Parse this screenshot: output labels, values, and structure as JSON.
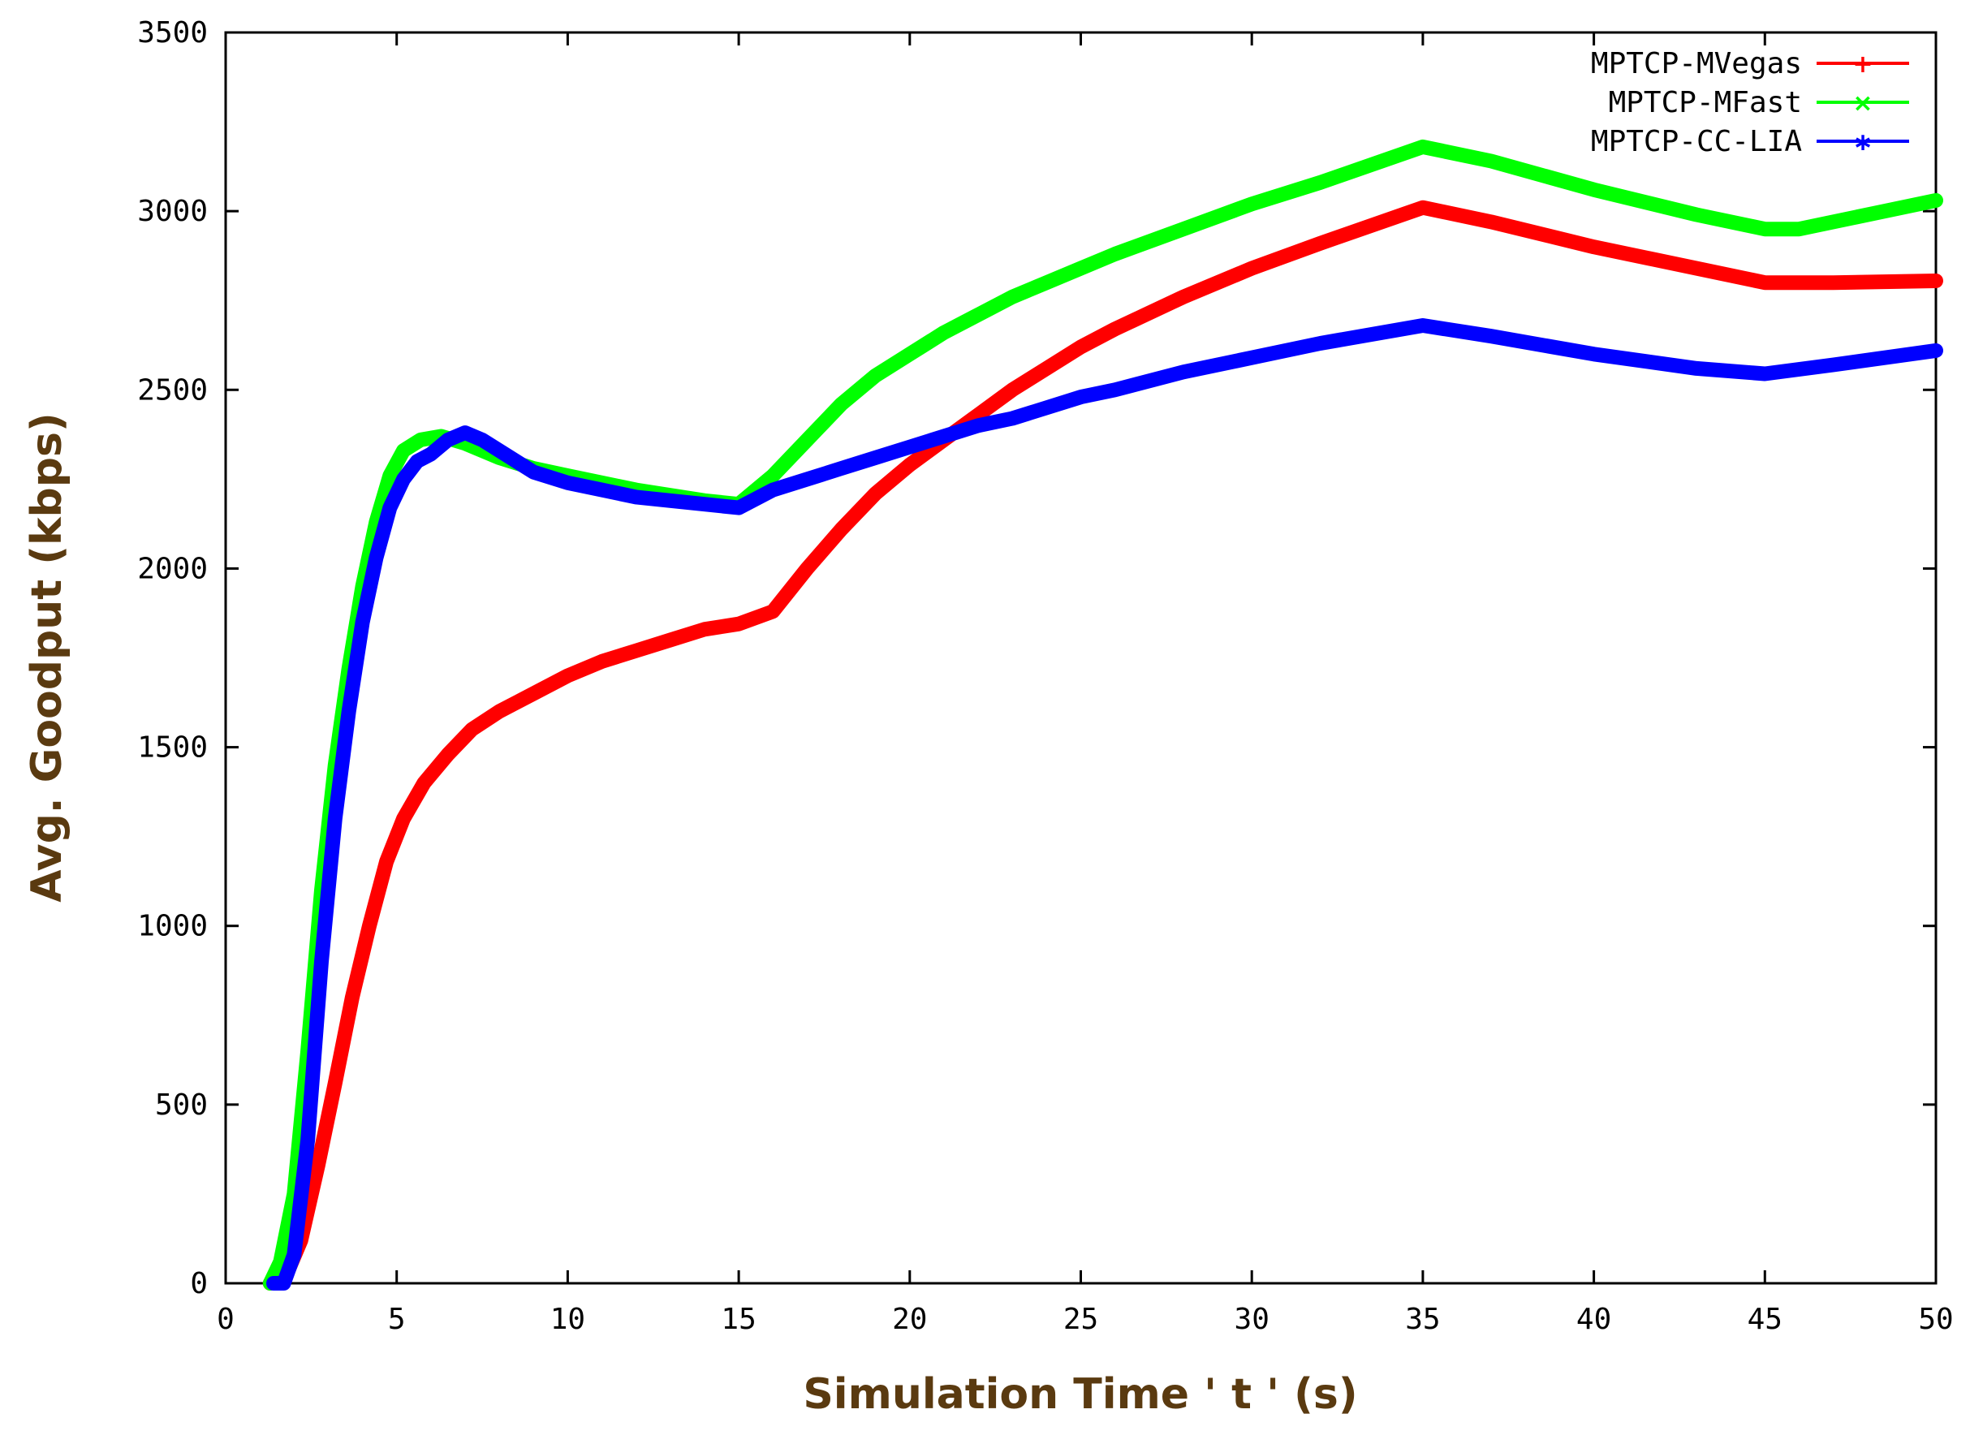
{
  "chart_data": {
    "type": "line",
    "title": "",
    "xlabel": "Simulation Time ' t ' (s)",
    "ylabel": "Avg. Goodput (kbps)",
    "xlim": [
      0,
      50
    ],
    "ylim": [
      0,
      3500
    ],
    "xticks": [
      0,
      5,
      10,
      15,
      20,
      25,
      30,
      35,
      40,
      45,
      50
    ],
    "yticks": [
      0,
      500,
      1000,
      1500,
      2000,
      2500,
      3000,
      3500
    ],
    "grid": false,
    "legend_position": "top-right",
    "axis_title_color": "#5a3a10",
    "series": [
      {
        "name": "MPTCP-MVegas",
        "color": "#ff0000",
        "x": [
          1.3,
          1.8,
          2.2,
          2.7,
          3.2,
          3.7,
          4.2,
          4.7,
          5.2,
          5.8,
          6.5,
          7.2,
          8,
          9,
          10,
          11,
          12,
          13,
          14,
          15,
          16,
          17,
          18,
          19,
          20,
          21,
          22,
          23,
          24,
          25,
          26,
          28,
          30,
          32,
          35,
          37,
          40,
          43,
          45,
          47,
          50
        ],
        "y": [
          0,
          30,
          120,
          330,
          560,
          800,
          1000,
          1180,
          1300,
          1400,
          1480,
          1550,
          1600,
          1650,
          1700,
          1740,
          1770,
          1800,
          1830,
          1845,
          1880,
          2000,
          2110,
          2210,
          2290,
          2360,
          2430,
          2500,
          2560,
          2620,
          2670,
          2760,
          2840,
          2910,
          3010,
          2970,
          2900,
          2840,
          2800,
          2800,
          2805
        ]
      },
      {
        "name": "MPTCP-MFast",
        "color": "#00ff00",
        "x": [
          1.3,
          1.6,
          2,
          2.4,
          2.8,
          3.2,
          3.6,
          4,
          4.4,
          4.8,
          5.2,
          5.7,
          6.3,
          7,
          8,
          9,
          10,
          12,
          14,
          15,
          16,
          17,
          18,
          19,
          20,
          21,
          22,
          23,
          24,
          25,
          26,
          28,
          30,
          32,
          35,
          37,
          40,
          43,
          45,
          46,
          50
        ],
        "y": [
          0,
          60,
          250,
          650,
          1100,
          1450,
          1720,
          1950,
          2130,
          2260,
          2330,
          2360,
          2370,
          2350,
          2310,
          2280,
          2260,
          2220,
          2190,
          2180,
          2260,
          2360,
          2460,
          2540,
          2600,
          2660,
          2710,
          2760,
          2800,
          2840,
          2880,
          2950,
          3020,
          3080,
          3180,
          3140,
          3060,
          2990,
          2950,
          2950,
          3030
        ]
      },
      {
        "name": "MPTCP-CC-LIA",
        "color": "#0000ff",
        "x": [
          1.4,
          1.7,
          2,
          2.4,
          2.8,
          3.2,
          3.6,
          4,
          4.4,
          4.8,
          5.2,
          5.6,
          6,
          6.5,
          7,
          7.5,
          8,
          9,
          10,
          11,
          12,
          13,
          14,
          15,
          16,
          17,
          18,
          19,
          20,
          21,
          22,
          23,
          24,
          25,
          26,
          28,
          30,
          32,
          35,
          37,
          40,
          43,
          45,
          47,
          50
        ],
        "y": [
          0,
          0,
          80,
          400,
          900,
          1300,
          1600,
          1850,
          2030,
          2170,
          2250,
          2300,
          2320,
          2360,
          2380,
          2360,
          2330,
          2270,
          2240,
          2220,
          2200,
          2190,
          2180,
          2170,
          2220,
          2250,
          2280,
          2310,
          2340,
          2370,
          2400,
          2420,
          2450,
          2480,
          2500,
          2550,
          2590,
          2630,
          2680,
          2650,
          2600,
          2560,
          2545,
          2570,
          2610
        ]
      }
    ]
  }
}
